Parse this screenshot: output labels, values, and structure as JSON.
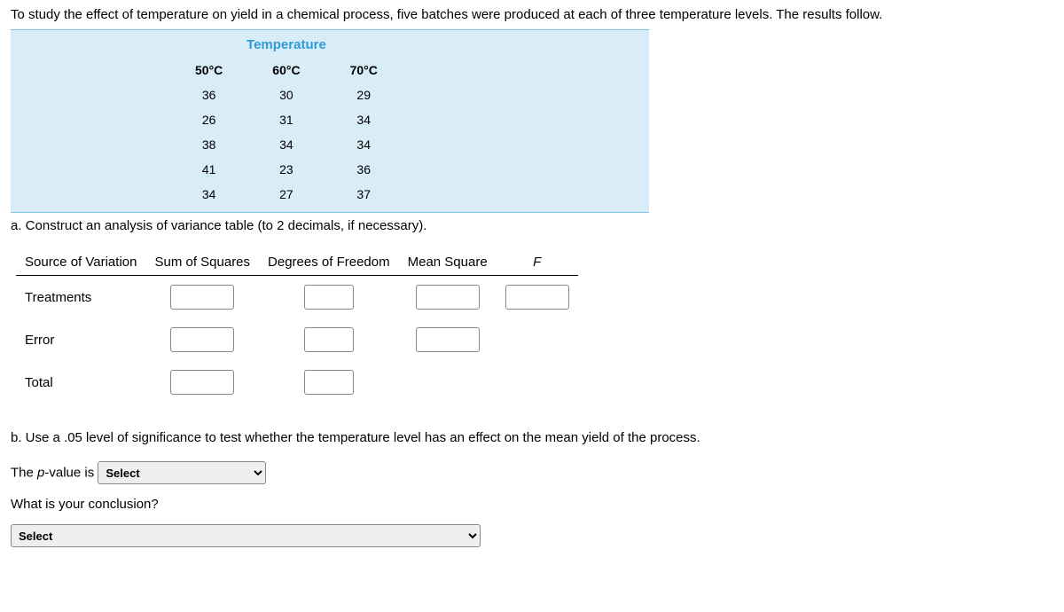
{
  "intro": "To study the effect of temperature on yield in a chemical process, five batches were produced at each of three temperature levels. The results follow.",
  "tempHeader": "Temperature",
  "columns": [
    "50°C",
    "60°C",
    "70°C"
  ],
  "rows": [
    [
      "36",
      "30",
      "29"
    ],
    [
      "26",
      "31",
      "34"
    ],
    [
      "38",
      "34",
      "34"
    ],
    [
      "41",
      "23",
      "36"
    ],
    [
      "34",
      "27",
      "37"
    ]
  ],
  "partA": "a. Construct an analysis of variance table (to 2 decimals, if necessary).",
  "anova": {
    "headers": [
      "Source of Variation",
      "Sum of Squares",
      "Degrees of Freedom",
      "Mean Square",
      "F"
    ],
    "rowLabels": [
      "Treatments",
      "Error",
      "Total"
    ]
  },
  "partB": "b. Use a .05 level of significance to test whether the temperature level has an effect on the mean yield of the process.",
  "pvalueLabelPre": "The ",
  "pvalueLabelItalic": "p",
  "pvalueLabelPost": "-value is",
  "conclusionLabel": "What is your conclusion?",
  "selectPlaceholder": "Select"
}
